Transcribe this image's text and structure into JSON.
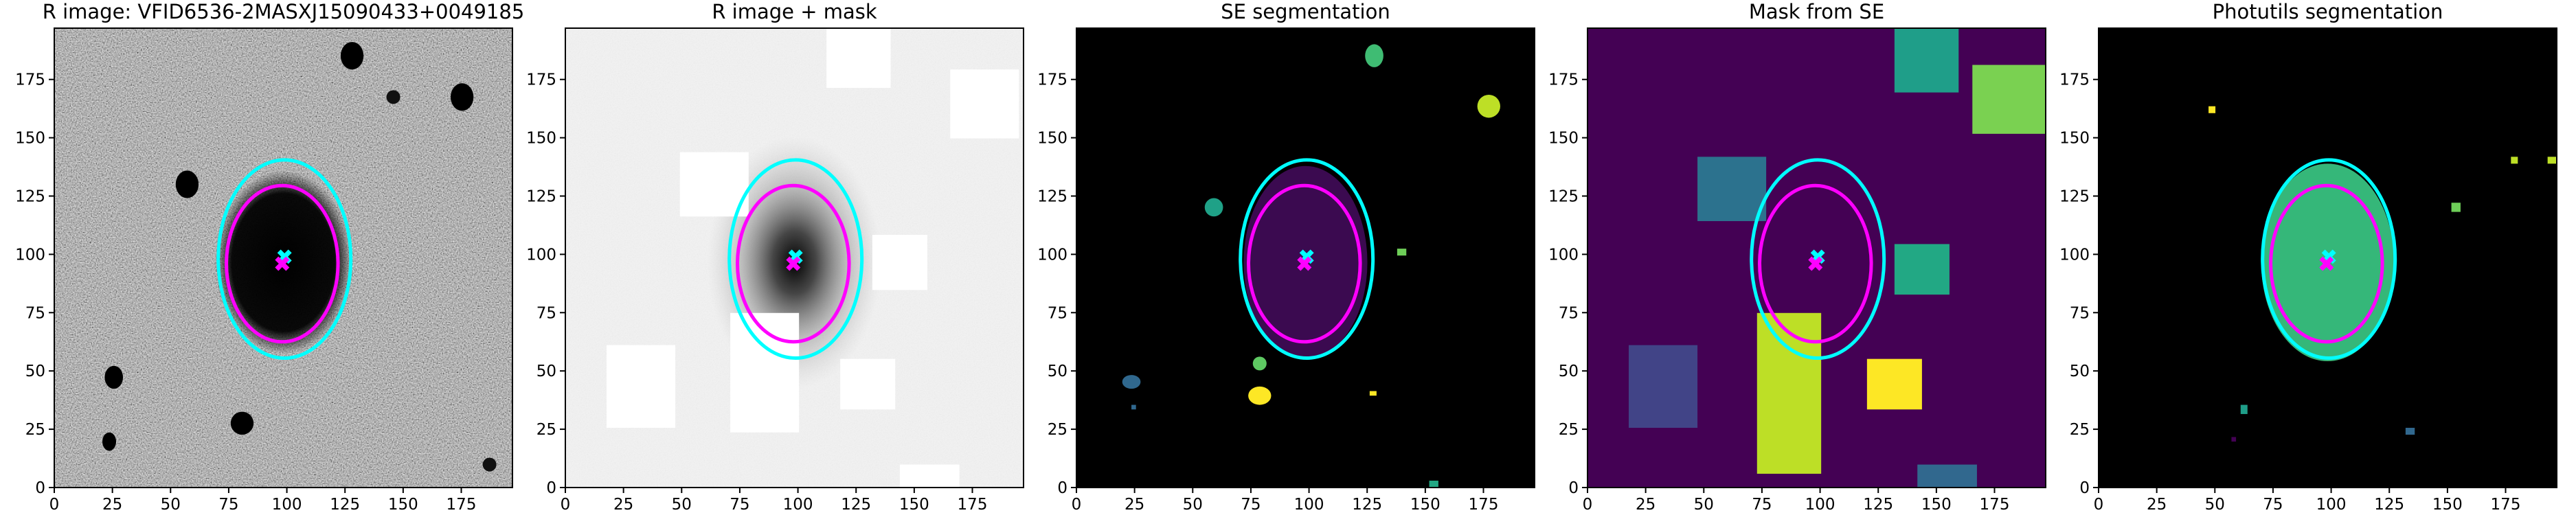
{
  "chart_data": [
    {
      "type": "image",
      "title": "R image: VFID6536-2MASXJ15090433+0049185",
      "background": "noise",
      "xlim": [
        0,
        197
      ],
      "ylim": [
        0,
        197
      ],
      "xticks": [
        0,
        25,
        50,
        75,
        100,
        125,
        150,
        175
      ],
      "yticks": [
        0,
        25,
        50,
        75,
        100,
        125,
        150,
        175
      ],
      "ellipses": [
        {
          "color": "#00ffff",
          "x": 99,
          "y": 98,
          "width": 57,
          "height": 85
        },
        {
          "color": "#ff00ff",
          "x": 98,
          "y": 96,
          "width": 48,
          "height": 67
        }
      ],
      "centers": [
        {
          "color": "#00ffff",
          "x": 99,
          "y": 99
        },
        {
          "color": "#ff00ff",
          "x": 98,
          "y": 96
        }
      ]
    },
    {
      "type": "image",
      "title": "R image + mask",
      "background": "masked",
      "xlim": [
        0,
        197
      ],
      "ylim": [
        0,
        197
      ],
      "xticks": [
        0,
        25,
        50,
        75,
        100,
        125,
        150,
        175
      ],
      "yticks": [
        0,
        25,
        50,
        75,
        100,
        125,
        150,
        175
      ],
      "ellipses": [
        {
          "color": "#00ffff",
          "x": 99,
          "y": 98,
          "width": 57,
          "height": 85
        },
        {
          "color": "#ff00ff",
          "x": 98,
          "y": 96,
          "width": 48,
          "height": 67
        }
      ],
      "centers": [
        {
          "color": "#00ffff",
          "x": 99,
          "y": 99
        },
        {
          "color": "#ff00ff",
          "x": 98,
          "y": 96
        }
      ]
    },
    {
      "type": "image",
      "title": "SE segmentation",
      "background": "se",
      "xlim": [
        0,
        197
      ],
      "ylim": [
        0,
        197
      ],
      "xticks": [
        0,
        25,
        50,
        75,
        100,
        125,
        150,
        175
      ],
      "yticks": [
        0,
        25,
        50,
        75,
        100,
        125,
        150,
        175
      ],
      "ellipses": [
        {
          "color": "#00ffff",
          "x": 99,
          "y": 98,
          "width": 57,
          "height": 85
        },
        {
          "color": "#ff00ff",
          "x": 98,
          "y": 96,
          "width": 48,
          "height": 67
        }
      ],
      "centers": [
        {
          "color": "#00ffff",
          "x": 99,
          "y": 99
        },
        {
          "color": "#ff00ff",
          "x": 98,
          "y": 96
        }
      ]
    },
    {
      "type": "image",
      "title": "Mask from SE",
      "background": "mask",
      "xlim": [
        0,
        197
      ],
      "ylim": [
        0,
        197
      ],
      "xticks": [
        0,
        25,
        50,
        75,
        100,
        125,
        150,
        175
      ],
      "yticks": [
        0,
        25,
        50,
        75,
        100,
        125,
        150,
        175
      ],
      "ellipses": [
        {
          "color": "#00ffff",
          "x": 99,
          "y": 98,
          "width": 57,
          "height": 85
        },
        {
          "color": "#ff00ff",
          "x": 98,
          "y": 96,
          "width": 48,
          "height": 67
        }
      ],
      "centers": [
        {
          "color": "#00ffff",
          "x": 99,
          "y": 99
        },
        {
          "color": "#ff00ff",
          "x": 98,
          "y": 96
        }
      ]
    },
    {
      "type": "image",
      "title": "Photutils segmentation",
      "background": "photutils",
      "xlim": [
        0,
        197
      ],
      "ylim": [
        0,
        197
      ],
      "xticks": [
        0,
        25,
        50,
        75,
        100,
        125,
        150,
        175
      ],
      "yticks": [
        0,
        25,
        50,
        75,
        100,
        125,
        150,
        175
      ],
      "ellipses": [
        {
          "color": "#00ffff",
          "x": 99,
          "y": 98,
          "width": 57,
          "height": 85
        },
        {
          "color": "#ff00ff",
          "x": 98,
          "y": 96,
          "width": 48,
          "height": 67
        }
      ],
      "centers": [
        {
          "color": "#00ffff",
          "x": 99,
          "y": 99
        },
        {
          "color": "#ff00ff",
          "x": 98,
          "y": 96
        }
      ]
    }
  ]
}
